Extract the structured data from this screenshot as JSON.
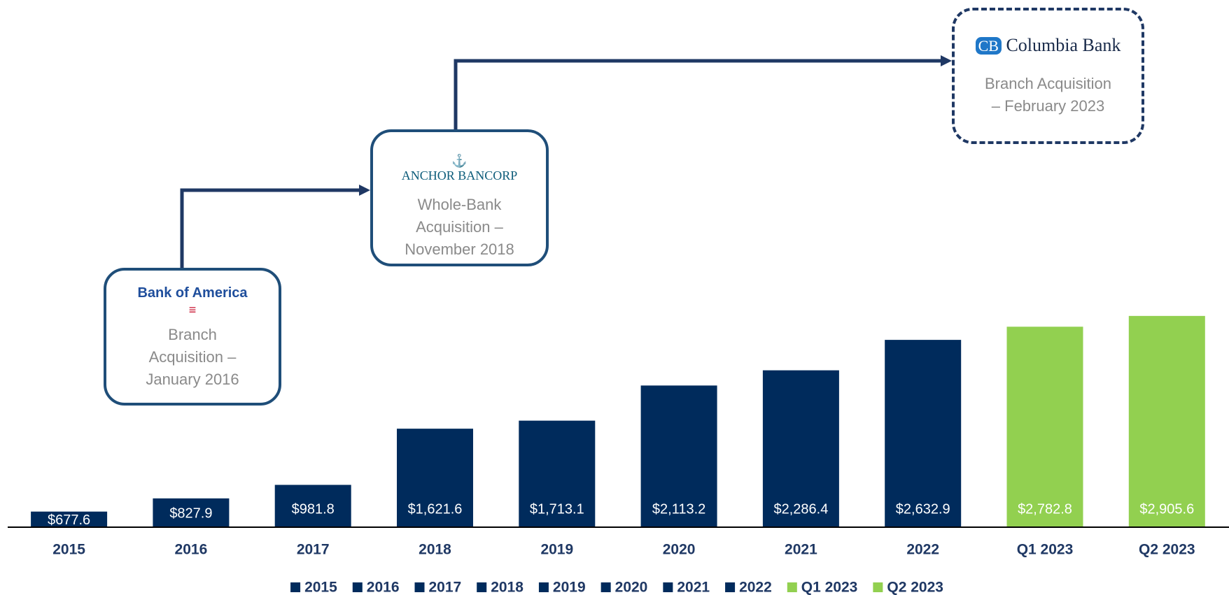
{
  "chart_data": {
    "type": "bar",
    "categories": [
      "2015",
      "2016",
      "2017",
      "2018",
      "2019",
      "2020",
      "2021",
      "2022",
      "Q1 2023",
      "Q2 2023"
    ],
    "values": [
      677.6,
      827.9,
      981.8,
      1621.6,
      1713.1,
      2113.2,
      2286.4,
      2632.9,
      2782.8,
      2905.6
    ],
    "value_labels": [
      "$677.6",
      "$827.9",
      "$981.8",
      "$1,621.6",
      "$1,713.1",
      "$2,113.2",
      "$2,286.4",
      "$2,632.9",
      "$2,782.8",
      "$2,905.6"
    ],
    "colors": [
      "#002b5c",
      "#002b5c",
      "#002b5c",
      "#002b5c",
      "#002b5c",
      "#002b5c",
      "#002b5c",
      "#002b5c",
      "#92d050",
      "#92d050"
    ],
    "ylim": [
      500,
      3000
    ],
    "annotations": [
      {
        "logo": "Bank of America",
        "text": [
          "Branch",
          "Acquisition –",
          "January 2016"
        ]
      },
      {
        "logo": "ANCHOR BANCORP",
        "text": [
          "Whole-Bank",
          "Acquisition –",
          "November 2018"
        ]
      },
      {
        "logo": "Columbia Bank",
        "text": [
          "Branch Acquisition",
          "– February 2023"
        ]
      }
    ]
  }
}
